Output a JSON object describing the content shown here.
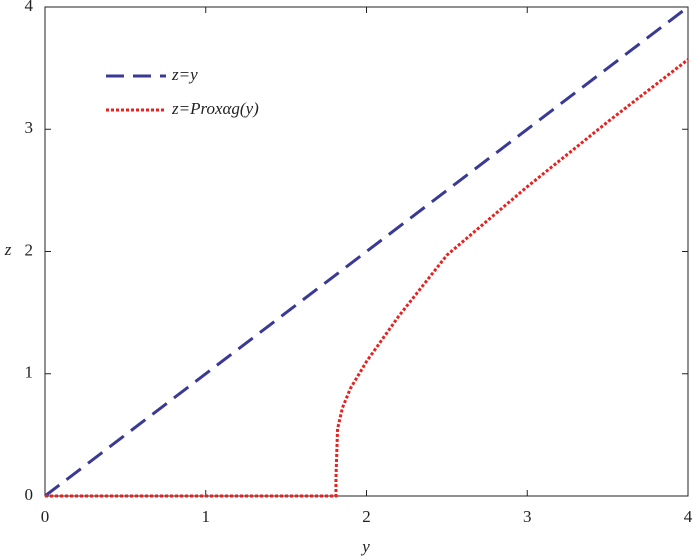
{
  "chart_data": {
    "type": "line",
    "xlabel": "y",
    "ylabel": "z",
    "xlim": [
      0,
      4
    ],
    "ylim": [
      0,
      4
    ],
    "xticks": [
      0,
      1,
      2,
      3,
      4
    ],
    "yticks": [
      0,
      1,
      2,
      3,
      4
    ],
    "grid": false,
    "legend": "upper left",
    "series": [
      {
        "name": "z=y",
        "color": "#3a3a96",
        "style": "dashed",
        "x": [
          0,
          4
        ],
        "values": [
          0,
          4
        ]
      },
      {
        "name": "z=Proxαg(y)",
        "color": "#e8201e",
        "style": "dotted",
        "x": [
          0,
          1.81,
          1.81,
          1.82,
          1.85,
          1.9,
          2.0,
          2.2,
          2.5,
          3.0,
          3.5,
          4.0
        ],
        "values": [
          0,
          0,
          0.15,
          0.55,
          0.72,
          0.88,
          1.1,
          1.47,
          1.97,
          2.53,
          3.06,
          3.57
        ]
      }
    ]
  }
}
